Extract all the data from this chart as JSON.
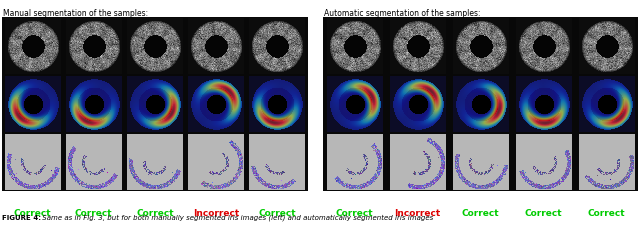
{
  "title_left": "Manual segmentation of the samples:",
  "title_right": "Automatic segmentation of the samples:",
  "labels_left": [
    "Correct",
    "Correct",
    "Correct",
    "Incorrect",
    "Correct"
  ],
  "labels_right": [
    "Correct",
    "Incorrect",
    "Correct",
    "Correct",
    "Correct"
  ],
  "label_colors_left": [
    "#00cc00",
    "#00cc00",
    "#00cc00",
    "#dd0000",
    "#00cc00"
  ],
  "label_colors_right": [
    "#00cc00",
    "#dd0000",
    "#00cc00",
    "#00cc00",
    "#00cc00"
  ],
  "caption_bold": "FIGURE 4:",
  "caption_rest": " Same as in Fig. 3, but for both manually segmented iris images (",
  "caption_bold2": "left",
  "caption_rest2": ") and automatically segmented iris images",
  "bg_color": "#ffffff",
  "n_cols": 5,
  "n_rows": 3
}
